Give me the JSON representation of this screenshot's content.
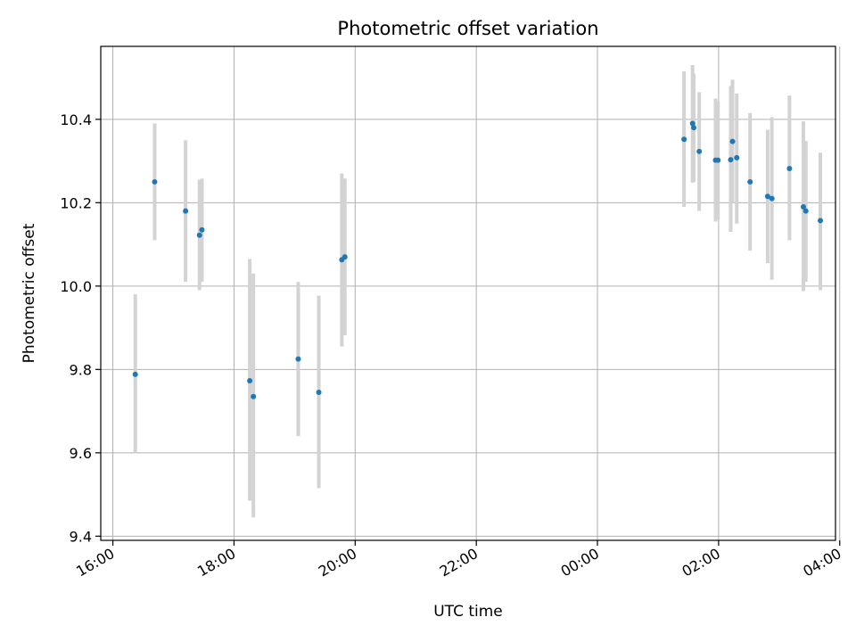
{
  "chart_data": {
    "type": "scatter",
    "title": "Photometric offset variation",
    "xlabel": "UTC time",
    "ylabel": "Photometric offset",
    "x_unit": "hours since 16:00 UTC",
    "xlim": [
      -0.2,
      11.93
    ],
    "ylim": [
      9.39,
      10.575
    ],
    "grid": true,
    "legend": "none",
    "x_ticks": [
      {
        "value": 0,
        "label": "16:00"
      },
      {
        "value": 2,
        "label": "18:00"
      },
      {
        "value": 4,
        "label": "20:00"
      },
      {
        "value": 6,
        "label": "22:00"
      },
      {
        "value": 8,
        "label": "00:00"
      },
      {
        "value": 10,
        "label": "02:00"
      },
      {
        "value": 12,
        "label": "04:00"
      }
    ],
    "y_ticks": [
      {
        "value": 9.4,
        "label": "9.4"
      },
      {
        "value": 9.6,
        "label": "9.6"
      },
      {
        "value": 9.8,
        "label": "9.8"
      },
      {
        "value": 10.0,
        "label": "10.0"
      },
      {
        "value": 10.2,
        "label": "10.2"
      },
      {
        "value": 10.4,
        "label": "10.4"
      }
    ],
    "colors": {
      "point": "#1f77b4",
      "errorbar": "#d3d3d3",
      "grid": "#b0b0b0",
      "axes": "#000000"
    },
    "points": [
      {
        "x": 0.37,
        "y": 9.788,
        "lo": 9.6,
        "hi": 9.98
      },
      {
        "x": 0.69,
        "y": 10.25,
        "lo": 10.11,
        "hi": 10.39
      },
      {
        "x": 1.2,
        "y": 10.18,
        "lo": 10.01,
        "hi": 10.35
      },
      {
        "x": 1.43,
        "y": 10.122,
        "lo": 9.99,
        "hi": 10.255
      },
      {
        "x": 1.47,
        "y": 10.135,
        "lo": 10.01,
        "hi": 10.258
      },
      {
        "x": 2.26,
        "y": 9.773,
        "lo": 9.485,
        "hi": 10.065
      },
      {
        "x": 2.32,
        "y": 9.735,
        "lo": 9.445,
        "hi": 10.03
      },
      {
        "x": 3.06,
        "y": 9.825,
        "lo": 9.64,
        "hi": 10.01
      },
      {
        "x": 3.4,
        "y": 9.745,
        "lo": 9.515,
        "hi": 9.977
      },
      {
        "x": 3.78,
        "y": 10.063,
        "lo": 9.855,
        "hi": 10.27
      },
      {
        "x": 3.83,
        "y": 10.07,
        "lo": 9.882,
        "hi": 10.258
      },
      {
        "x": 9.43,
        "y": 10.352,
        "lo": 10.19,
        "hi": 10.515
      },
      {
        "x": 9.57,
        "y": 10.39,
        "lo": 10.248,
        "hi": 10.53
      },
      {
        "x": 9.59,
        "y": 10.38,
        "lo": 10.25,
        "hi": 10.51
      },
      {
        "x": 9.68,
        "y": 10.323,
        "lo": 10.18,
        "hi": 10.465
      },
      {
        "x": 9.95,
        "y": 10.302,
        "lo": 10.155,
        "hi": 10.45
      },
      {
        "x": 9.99,
        "y": 10.302,
        "lo": 10.16,
        "hi": 10.443
      },
      {
        "x": 10.2,
        "y": 10.303,
        "lo": 10.13,
        "hi": 10.48
      },
      {
        "x": 10.23,
        "y": 10.347,
        "lo": 10.2,
        "hi": 10.495
      },
      {
        "x": 10.3,
        "y": 10.308,
        "lo": 10.15,
        "hi": 10.462
      },
      {
        "x": 10.52,
        "y": 10.25,
        "lo": 10.085,
        "hi": 10.415
      },
      {
        "x": 10.81,
        "y": 10.215,
        "lo": 10.055,
        "hi": 10.375
      },
      {
        "x": 10.88,
        "y": 10.21,
        "lo": 10.015,
        "hi": 10.405
      },
      {
        "x": 11.17,
        "y": 10.282,
        "lo": 10.11,
        "hi": 10.457
      },
      {
        "x": 11.4,
        "y": 10.19,
        "lo": 9.988,
        "hi": 10.395
      },
      {
        "x": 11.44,
        "y": 10.18,
        "lo": 10.01,
        "hi": 10.348
      },
      {
        "x": 11.68,
        "y": 10.157,
        "lo": 9.99,
        "hi": 10.32
      }
    ]
  }
}
